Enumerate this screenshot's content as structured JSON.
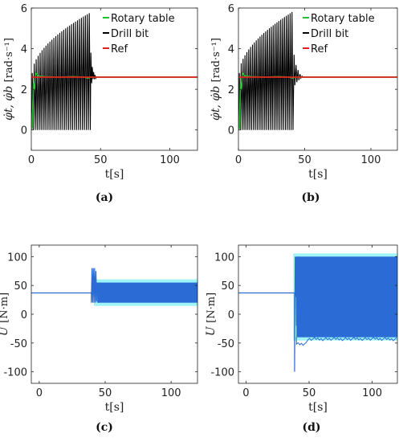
{
  "chart_data": [
    {
      "type": "line",
      "caption": "(a)",
      "xlabel": "t[s]",
      "ylabel": "φ̇t, φ̇b",
      "yunit": "[rad·s⁻¹]",
      "xlim": [
        0,
        120
      ],
      "ylim": [
        -1,
        6
      ],
      "xticks": [
        0,
        50,
        100
      ],
      "yticks": [
        0,
        2,
        4,
        6
      ],
      "legend_position": "top-right",
      "colors": {
        "rotary": "#22c22e",
        "drill": "#000000",
        "ref": "#e0201e"
      },
      "series": [
        {
          "name": "Rotary table",
          "key": "rotary",
          "x": [
            0,
            0.8,
            1.5,
            2,
            3,
            5,
            10,
            20,
            30,
            38,
            41,
            43,
            45,
            120
          ],
          "y": [
            0,
            0.2,
            2.3,
            2.0,
            2.8,
            2.65,
            2.62,
            2.6,
            2.62,
            2.6,
            2.55,
            2.6,
            2.6,
            2.6
          ]
        },
        {
          "name": "Drill bit",
          "key": "drill",
          "oscillation": {
            "start": 0,
            "end": 43,
            "period": 1.42,
            "peak_start": 2.8,
            "peak_end": 5.75,
            "trough": 0,
            "decay_after": [
              [
                43,
                3.8,
                2.3
              ],
              [
                44,
                3.1,
                2.5
              ],
              [
                45,
                2.85,
                2.5
              ],
              [
                46,
                2.7,
                2.55
              ],
              [
                47,
                2.62,
                2.6
              ]
            ]
          }
        },
        {
          "name": "Ref",
          "key": "ref",
          "x": [
            0,
            120
          ],
          "y": [
            2.6,
            2.6
          ]
        }
      ]
    },
    {
      "type": "line",
      "caption": "(b)",
      "xlabel": "t[s]",
      "ylabel": "φ̇t, φ̇b",
      "yunit": "[rad·s⁻¹]",
      "xlim": [
        0,
        120
      ],
      "ylim": [
        -1,
        6
      ],
      "xticks": [
        0,
        50,
        100
      ],
      "yticks": [
        0,
        2,
        4,
        6
      ],
      "legend_position": "top-right",
      "colors": {
        "rotary": "#22c22e",
        "drill": "#000000",
        "ref": "#e0201e"
      },
      "series": [
        {
          "name": "Rotary table",
          "key": "rotary",
          "x": [
            0,
            0.8,
            1.5,
            2,
            3,
            5,
            10,
            20,
            30,
            38,
            41,
            43,
            45,
            120
          ],
          "y": [
            0,
            0.2,
            2.3,
            2.0,
            2.8,
            2.65,
            2.62,
            2.6,
            2.62,
            2.6,
            2.55,
            2.6,
            2.6,
            2.6
          ]
        },
        {
          "name": "Drill bit",
          "key": "drill",
          "oscillation": {
            "start": 0,
            "end": 42,
            "period": 1.42,
            "peak_start": 2.8,
            "peak_end": 5.8,
            "trough": 0,
            "decay_after": [
              [
                42,
                3.7,
                2.2
              ],
              [
                43.5,
                3.2,
                2.35
              ],
              [
                45,
                2.95,
                2.45
              ],
              [
                46.5,
                2.75,
                2.55
              ],
              [
                48,
                2.65,
                2.6
              ]
            ]
          }
        },
        {
          "name": "Ref",
          "key": "ref",
          "x": [
            0,
            120
          ],
          "y": [
            2.6,
            2.6
          ]
        }
      ]
    },
    {
      "type": "line",
      "caption": "(c)",
      "xlabel": "t[s]",
      "ylabel": "U",
      "yunit": "[N·m]",
      "xlim": [
        -6,
        120
      ],
      "ylim": [
        -120,
        120
      ],
      "xticks": [
        0,
        50,
        100
      ],
      "yticks": [
        -100,
        -50,
        0,
        50,
        100
      ],
      "colors": {
        "signal": "#2a6bd6",
        "halo": "#9ff5f5"
      },
      "series": [
        {
          "name": "U",
          "x": [
            -6,
            39.5,
            39.5,
            40,
            40.5,
            41,
            41.5,
            42,
            42.5,
            43,
            43.5,
            44,
            45,
            46
          ],
          "y": [
            37,
            37,
            20,
            80,
            20,
            80,
            20,
            80,
            20,
            75,
            22,
            55,
            20,
            55
          ]
        },
        {
          "name": "U-band",
          "band": {
            "start": 44,
            "end": 120,
            "low": 20,
            "high": 55
          }
        }
      ]
    },
    {
      "type": "line",
      "caption": "(d)",
      "xlabel": "t[s]",
      "ylabel": "U",
      "yunit": "[N·m]",
      "xlim": [
        -6,
        120
      ],
      "ylim": [
        -120,
        120
      ],
      "xticks": [
        0,
        50,
        100
      ],
      "yticks": [
        -100,
        -50,
        0,
        50,
        100
      ],
      "colors": {
        "signal": "#2a6bd6",
        "halo": "#9ff5f5"
      },
      "series": [
        {
          "name": "U",
          "x": [
            -6,
            38.5,
            38.5,
            39,
            39.3,
            39.6,
            40,
            40.4,
            40.8,
            41.2,
            41.6,
            42
          ],
          "y": [
            37,
            37,
            -100,
            100,
            30,
            100,
            -20,
            100,
            20,
            100,
            10,
            100
          ]
        },
        {
          "name": "U-band",
          "band": {
            "start": 40,
            "end": 120,
            "low": -40,
            "high": 100
          }
        }
      ]
    }
  ]
}
